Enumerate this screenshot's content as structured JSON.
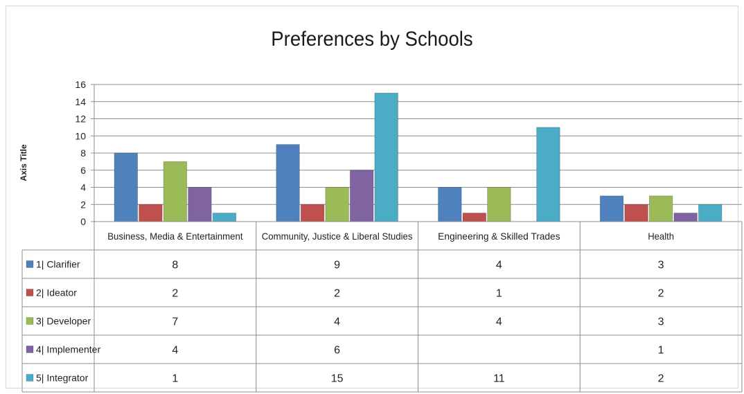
{
  "chart_data": {
    "type": "bar",
    "title": "Preferences by Schools",
    "ylabel": "Axis Title",
    "xlabel": "",
    "ylim": [
      0,
      16
    ],
    "yticks": [
      0,
      2,
      4,
      6,
      8,
      10,
      12,
      14,
      16
    ],
    "grid": true,
    "legend": "table",
    "categories": [
      "Business, Media & Entertainment",
      "Community, Justice & Liberal Studies",
      "Engineering & Skilled Trades",
      "Health"
    ],
    "series": [
      {
        "name": "1| Clarifier",
        "color": "#4f81bd",
        "values": [
          8,
          9,
          4,
          3
        ]
      },
      {
        "name": "2| Ideator",
        "color": "#c0504d",
        "values": [
          2,
          2,
          1,
          2
        ]
      },
      {
        "name": "3| Developer",
        "color": "#9bbb59",
        "values": [
          7,
          4,
          4,
          3
        ]
      },
      {
        "name": "4| Implementer",
        "color": "#8064a2",
        "values": [
          4,
          6,
          null,
          1
        ]
      },
      {
        "name": "5| Integrator",
        "color": "#4bacc6",
        "values": [
          1,
          15,
          11,
          2
        ]
      }
    ]
  }
}
